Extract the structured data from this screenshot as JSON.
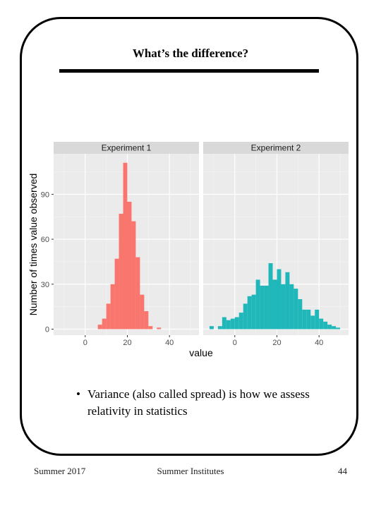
{
  "slide": {
    "title": "What’s the difference?",
    "bullet_text": "Variance (also called spread) is how we assess relativity in statistics",
    "footer_left": "Summer 2017",
    "footer_center": "Summer Institutes",
    "footer_right": "44"
  },
  "colors": {
    "experiment1": "#F8766D",
    "experiment2": "#1FB7B9",
    "panel_bg": "#EBEBEB",
    "strip_bg": "#D9D9D9"
  },
  "chart_data": {
    "type": "bar",
    "subtype": "histogram",
    "xlabel": "value",
    "ylabel": "Number of times value observed",
    "xlim": [
      -15,
      54
    ],
    "ylim": [
      -4,
      117
    ],
    "xticks": [
      0,
      20,
      40
    ],
    "yticks": [
      0,
      30,
      60,
      90
    ],
    "bin_width": 2,
    "grid": true,
    "legend": "none",
    "panels": [
      {
        "name": "Experiment 1",
        "bin_starts": [
          6,
          8,
          10,
          12,
          14,
          16,
          18,
          20,
          22,
          24,
          26,
          28,
          30,
          34
        ],
        "values": [
          3,
          7,
          17,
          30,
          47,
          77,
          111,
          85,
          72,
          48,
          23,
          12,
          2,
          1
        ]
      },
      {
        "name": "Experiment 2",
        "bin_starts": [
          -12,
          -8,
          -6,
          -4,
          -2,
          0,
          2,
          4,
          6,
          8,
          10,
          12,
          14,
          16,
          18,
          20,
          22,
          24,
          26,
          28,
          30,
          32,
          34,
          36,
          38,
          40,
          42,
          44,
          46,
          48
        ],
        "values": [
          2,
          2,
          8,
          6,
          7,
          8,
          11,
          17,
          22,
          23,
          33,
          29,
          29,
          44,
          33,
          40,
          30,
          38,
          30,
          27,
          20,
          13,
          13,
          9,
          13,
          7,
          5,
          3,
          2,
          1
        ]
      }
    ]
  }
}
